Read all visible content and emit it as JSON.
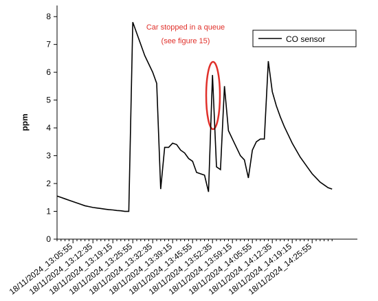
{
  "chart_data": {
    "type": "line",
    "ylabel": "ppm",
    "annotation": [
      "Car stopped in a queue",
      "(see figure 15)"
    ],
    "categories": [
      null,
      null,
      null,
      null,
      "18/11/2024_13:05:55",
      null,
      null,
      null,
      null,
      "18/11/2024_13:12:35",
      null,
      null,
      null,
      null,
      "18/11/2024_13:19:15",
      null,
      null,
      null,
      null,
      "18/11/2024_13:25:55",
      null,
      null,
      null,
      null,
      "18/11/2024_13:32:35",
      null,
      null,
      null,
      null,
      "18/11/2024_13:39:15",
      null,
      null,
      null,
      null,
      "18/11/2024_13:45:55",
      null,
      null,
      null,
      null,
      "18/11/2024_13:52:35",
      null,
      null,
      null,
      null,
      "18/11/2024_13:59:15",
      null,
      null,
      null,
      null,
      "18/11/2024_14:05:55",
      null,
      null,
      null,
      null,
      "18/11/2024_14:12:35",
      null,
      null,
      null,
      null,
      "18/11/2024_14:19:15",
      null,
      null,
      null,
      null,
      "18/11/2024_14:25:55",
      null,
      null,
      null,
      null,
      null
    ],
    "series": [
      {
        "name": "CO sensor",
        "color": "#000000",
        "values": [
          1.55,
          1.5,
          1.45,
          1.4,
          1.35,
          1.3,
          1.25,
          1.2,
          1.17,
          1.14,
          1.12,
          1.1,
          1.08,
          1.06,
          1.05,
          1.03,
          1.02,
          1.0,
          1.0,
          7.8,
          7.4,
          7.0,
          6.6,
          6.3,
          6.0,
          5.6,
          1.8,
          3.3,
          3.3,
          3.45,
          3.4,
          3.2,
          3.1,
          2.9,
          2.8,
          2.4,
          2.35,
          2.3,
          1.7,
          5.9,
          2.6,
          2.5,
          5.5,
          3.9,
          3.6,
          3.3,
          3.0,
          2.85,
          2.2,
          3.2,
          3.5,
          3.6,
          3.6,
          6.4,
          5.3,
          4.8,
          4.4,
          4.05,
          3.75,
          3.45,
          3.2,
          2.95,
          2.75,
          2.55,
          2.35,
          2.2,
          2.05,
          1.95,
          1.85,
          1.8
        ]
      }
    ],
    "ylim": [
      0,
      8.4
    ],
    "yticks": [
      0,
      1,
      2,
      3,
      4,
      5,
      6,
      7,
      8
    ],
    "legend": "top-right"
  }
}
